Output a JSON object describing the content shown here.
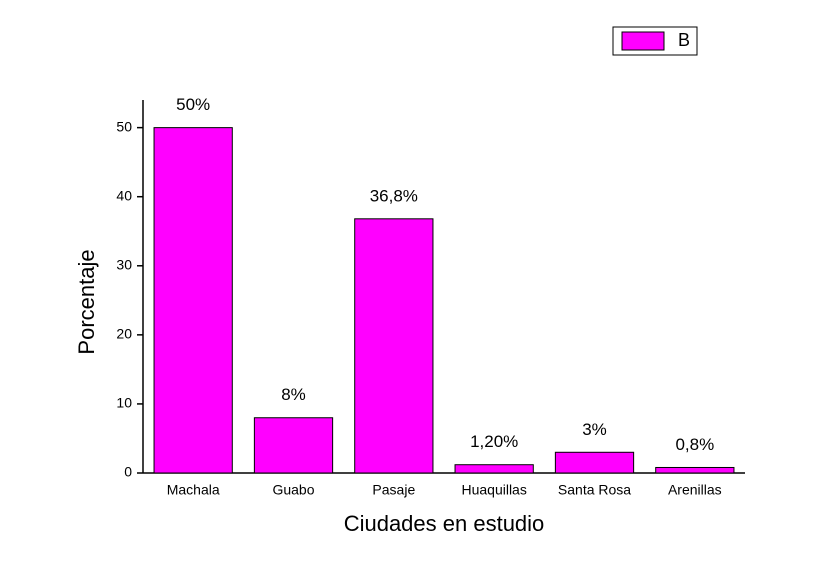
{
  "chart_data": {
    "type": "bar",
    "x_label": "Ciudades en estudio",
    "y_label": "Porcentaje",
    "categories": [
      "Machala",
      "Guabo",
      "Pasaje",
      "Huaquillas",
      "Santa Rosa",
      "Arenillas"
    ],
    "series": [
      {
        "name": "B",
        "color": "#ff00ff",
        "values": [
          50,
          8,
          36.8,
          1.2,
          3,
          0.8
        ],
        "value_labels": [
          "50%",
          "8%",
          "36,8%",
          "1,20%",
          "3%",
          "0,8%"
        ]
      }
    ],
    "ylim": [
      0,
      54
    ],
    "yticks": [
      0,
      10,
      20,
      30,
      40,
      50
    ],
    "grid": false,
    "legend": "top-right"
  }
}
